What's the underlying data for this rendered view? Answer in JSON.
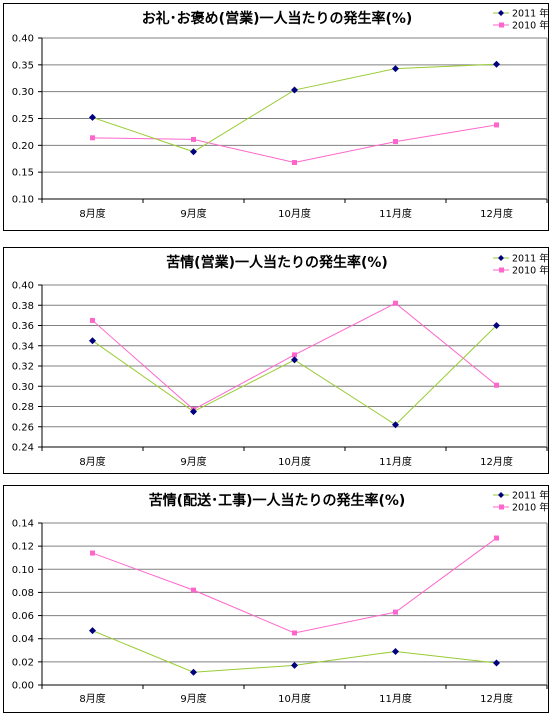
{
  "chart_data": [
    {
      "type": "line",
      "title": "お礼･お褒め(営業)一人当たりの発生率(%)",
      "categories": [
        "8月度",
        "9月度",
        "10月度",
        "11月度",
        "12月度"
      ],
      "series": [
        {
          "name": "2011 年",
          "values": [
            0.252,
            0.188,
            0.303,
            0.343,
            0.351
          ]
        },
        {
          "name": "2010 年",
          "values": [
            0.214,
            0.211,
            0.168,
            0.207,
            0.238
          ]
        }
      ],
      "ylim": [
        0.1,
        0.4
      ],
      "yticks": [
        "0.10",
        "0.15",
        "0.20",
        "0.25",
        "0.30",
        "0.35",
        "0.40"
      ],
      "grid": true,
      "legend": "top-right"
    },
    {
      "type": "line",
      "title": "苦情(営業)一人当たりの発生率(%)",
      "categories": [
        "8月度",
        "9月度",
        "10月度",
        "11月度",
        "12月度"
      ],
      "series": [
        {
          "name": "2011 年",
          "values": [
            0.345,
            0.275,
            0.326,
            0.262,
            0.36
          ]
        },
        {
          "name": "2010 年",
          "values": [
            0.365,
            0.277,
            0.331,
            0.382,
            0.301
          ]
        }
      ],
      "ylim": [
        0.24,
        0.4
      ],
      "yticks": [
        "0.24",
        "0.26",
        "0.28",
        "0.30",
        "0.32",
        "0.34",
        "0.36",
        "0.38",
        "0.40"
      ],
      "grid": true,
      "legend": "top-right"
    },
    {
      "type": "line",
      "title": "苦情(配送･工事)一人当たりの発生率(%)",
      "categories": [
        "8月度",
        "9月度",
        "10月度",
        "11月度",
        "12月度"
      ],
      "series": [
        {
          "name": "2011 年",
          "values": [
            0.047,
            0.011,
            0.017,
            0.029,
            0.019
          ]
        },
        {
          "name": "2010 年",
          "values": [
            0.114,
            0.082,
            0.045,
            0.063,
            0.127
          ]
        }
      ],
      "ylim": [
        0.0,
        0.14
      ],
      "yticks": [
        "0.00",
        "0.02",
        "0.04",
        "0.06",
        "0.08",
        "0.10",
        "0.12",
        "0.14"
      ],
      "grid": true,
      "legend": "top-right"
    }
  ],
  "colors": {
    "series_2011_line": "#99cc33",
    "series_2011_marker": "#000080",
    "series_2010": "#ff66cc",
    "grid": "#808080"
  }
}
